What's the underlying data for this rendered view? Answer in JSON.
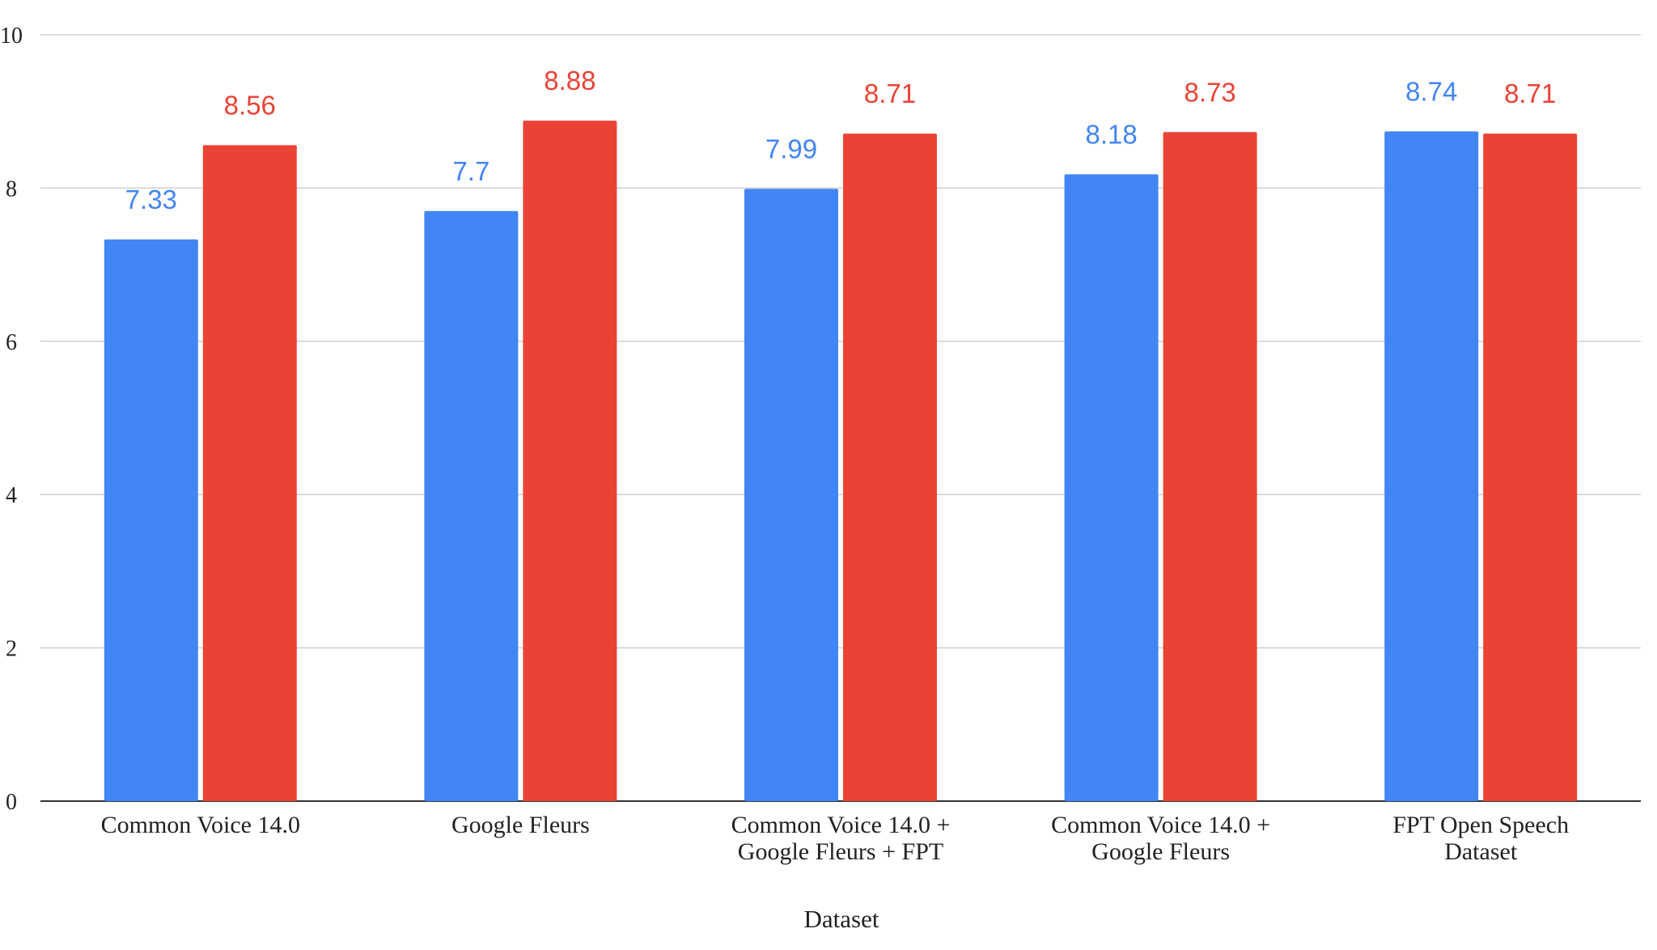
{
  "chart_data": {
    "type": "bar",
    "title": "",
    "xlabel": "Dataset",
    "ylabel": "",
    "ylim": [
      0,
      10
    ],
    "yticks": [
      0,
      2,
      4,
      6,
      8,
      10
    ],
    "grid": true,
    "categories": [
      [
        "Common Voice 14.0"
      ],
      [
        "Google Fleurs"
      ],
      [
        "Common Voice 14.0 +",
        "Google Fleurs + FPT"
      ],
      [
        "Common Voice 14.0 +",
        "Google Fleurs"
      ],
      [
        "FPT Open Speech",
        "Dataset"
      ]
    ],
    "series": [
      {
        "color": "#4285f4",
        "values": [
          7.33,
          7.7,
          7.99,
          8.18,
          8.74
        ],
        "labels": [
          "7.33",
          "7.7",
          "7.99",
          "8.18",
          "8.74"
        ]
      },
      {
        "color": "#ea4335",
        "values": [
          8.56,
          8.88,
          8.71,
          8.73,
          8.71
        ],
        "labels": [
          "8.56",
          "8.88",
          "8.71",
          "8.73",
          "8.71"
        ]
      }
    ]
  }
}
